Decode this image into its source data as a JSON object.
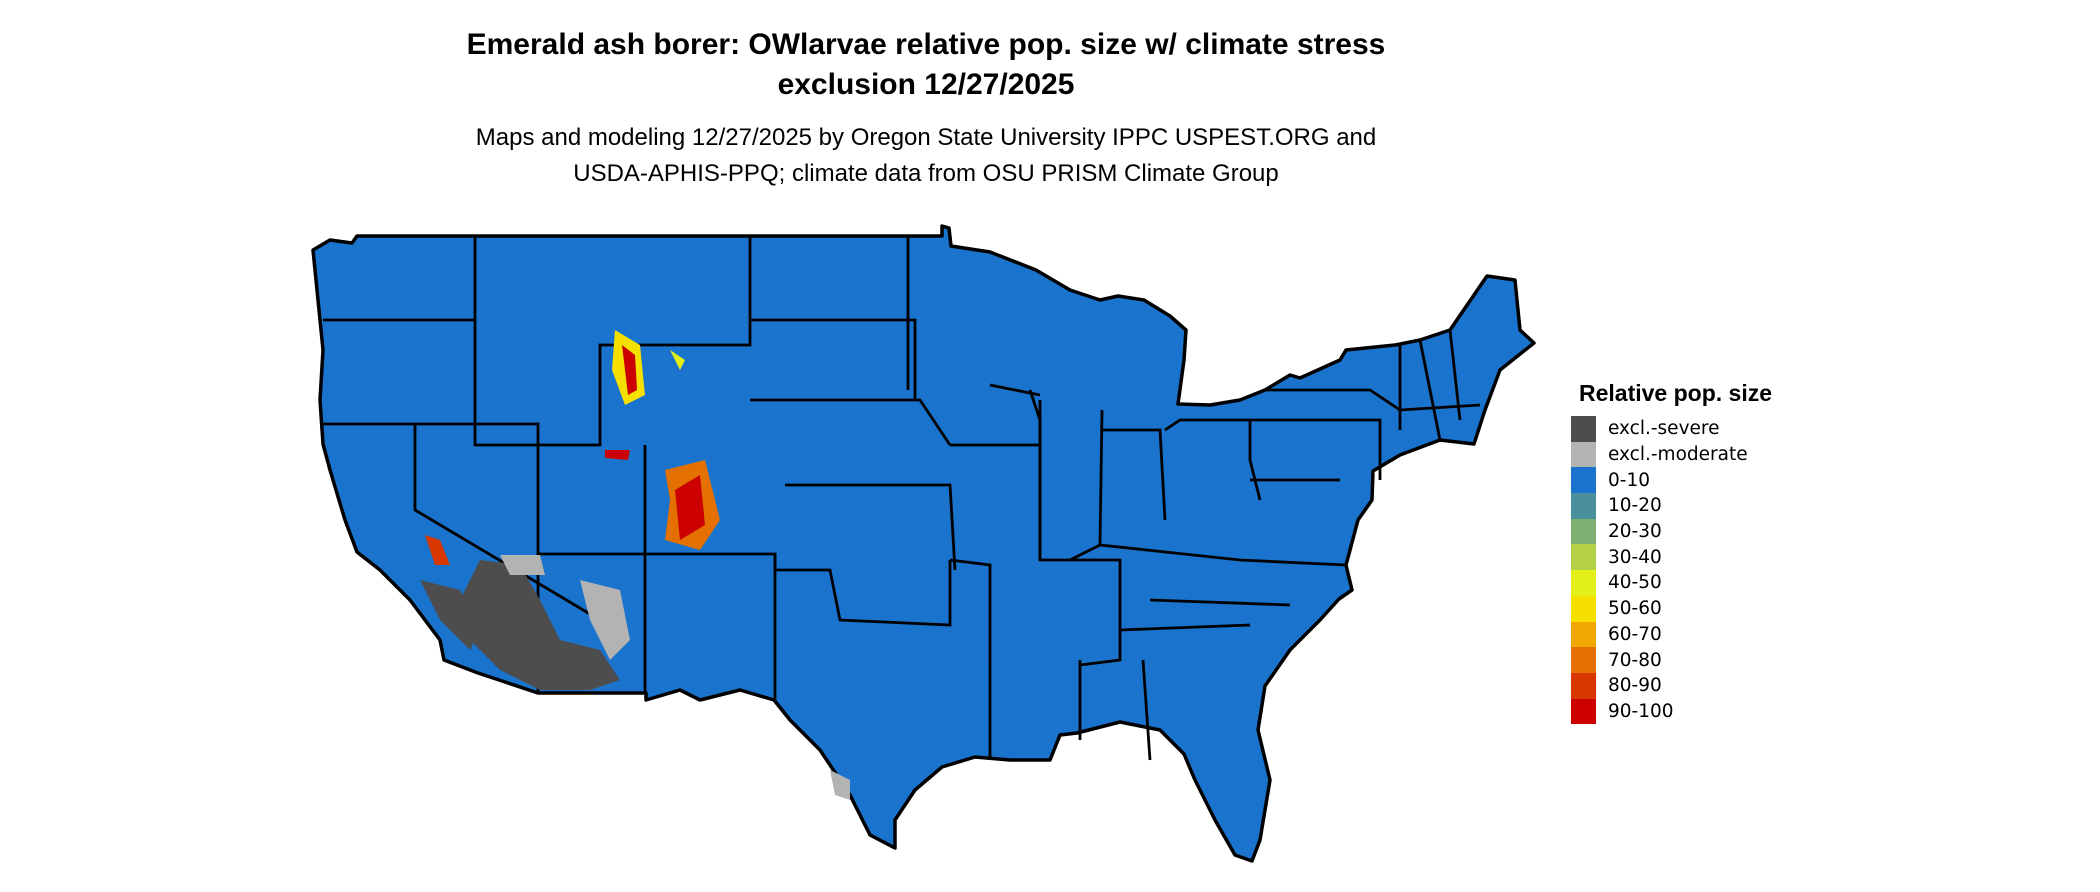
{
  "title": {
    "line1": "Emerald ash borer: OWlarvae relative pop. size w/ climate stress",
    "line2": "exclusion 12/27/2025"
  },
  "subtitle": {
    "line1": "Maps and modeling 12/27/2025 by Oregon State University IPPC USPEST.ORG and",
    "line2": "USDA-APHIS-PPQ; climate data from OSU PRISM Climate Group"
  },
  "map": {
    "region": "Contiguous United States",
    "base_color": "#1a73cc",
    "border_color": "#000000"
  },
  "legend": {
    "title": "Relative pop. size",
    "items": [
      {
        "label": "excl.-severe",
        "color": "#4d4d4d"
      },
      {
        "label": "excl.-moderate",
        "color": "#b3b3b3"
      },
      {
        "label": "0-10",
        "color": "#1a73cc"
      },
      {
        "label": "10-20",
        "color": "#4a909c"
      },
      {
        "label": "20-30",
        "color": "#7daf73"
      },
      {
        "label": "30-40",
        "color": "#b3d046"
      },
      {
        "label": "40-50",
        "color": "#e3ef1a"
      },
      {
        "label": "50-60",
        "color": "#f6e000"
      },
      {
        "label": "60-70",
        "color": "#f0a800"
      },
      {
        "label": "70-80",
        "color": "#e37000"
      },
      {
        "label": "80-90",
        "color": "#d83800"
      },
      {
        "label": "90-100",
        "color": "#cc0000"
      }
    ]
  }
}
